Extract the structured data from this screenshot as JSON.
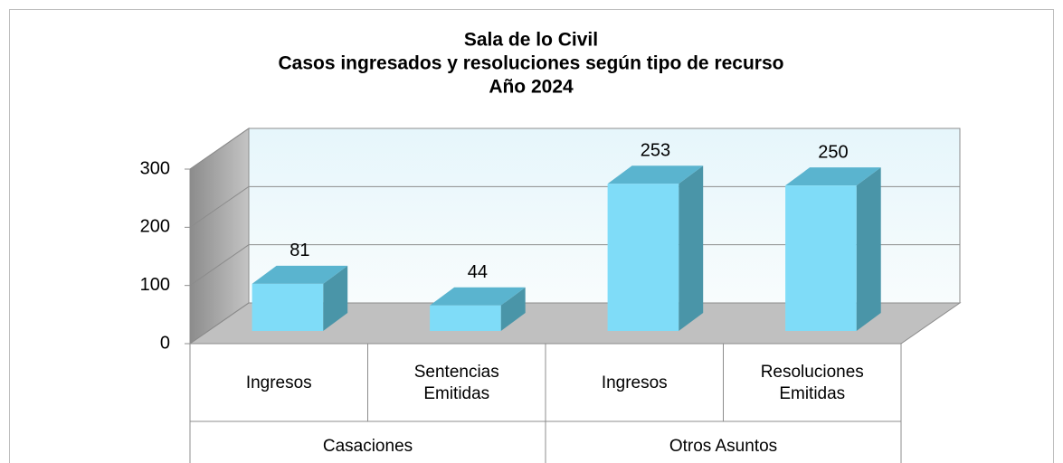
{
  "chart_data": {
    "type": "bar3d",
    "title": [
      "Sala de lo Civil",
      "Casos ingresados y resoluciones según tipo de recurso",
      "Año 2024"
    ],
    "groups": [
      {
        "name": "Casaciones",
        "categories": [
          "Ingresos",
          "Sentencias Emitidas"
        ]
      },
      {
        "name": "Otros Asuntos",
        "categories": [
          "Ingresos",
          "Resoluciones Emitidas"
        ]
      }
    ],
    "values": [
      81,
      44,
      253,
      250
    ],
    "color": "#7fdcf8",
    "ylim": [
      0,
      300
    ],
    "yticks": [
      0,
      100,
      200,
      300
    ],
    "grid": true
  }
}
